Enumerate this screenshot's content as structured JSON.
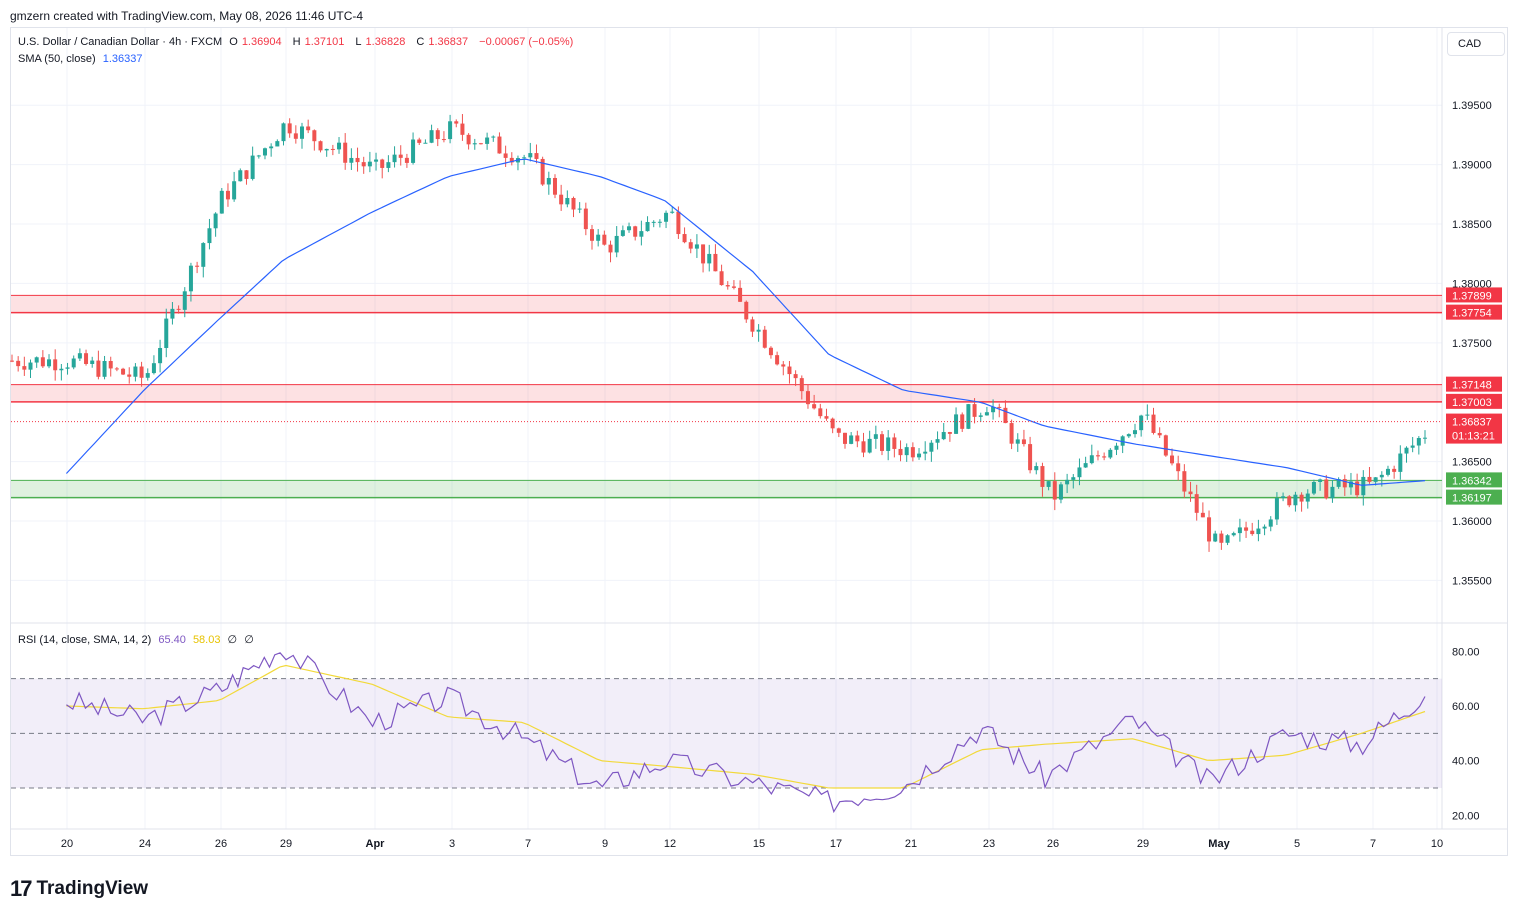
{
  "header": {
    "credit": "gmzern created with TradingView.com, May 08, 2026 11:46 UTC-4"
  },
  "legend": {
    "symbol": "U.S. Dollar / Canadian Dollar · 4h · FXCM",
    "o_label": "O",
    "o": "1.36904",
    "h_label": "H",
    "h": "1.37101",
    "l_label": "L",
    "l": "1.36828",
    "c_label": "C",
    "c": "1.36837",
    "change": "−0.00067 (−0.05%)",
    "sma_label": "SMA (50, close)",
    "sma_value": "1.36337",
    "rsi_label": "RSI (14, close, SMA, 14, 2)",
    "rsi_value": "65.40",
    "rsi_ma_value": "58.03",
    "rsi_extra1": "∅",
    "rsi_extra2": "∅"
  },
  "currency": "CAD",
  "countdown": "01:13:21",
  "footer": {
    "brand": "TradingView",
    "logo": "17"
  },
  "colors": {
    "up": "#26a69a",
    "down": "#ef5350",
    "sma": "#2962ff",
    "rsi": "#7e57c2",
    "rsi_ma": "#f2d93a",
    "resistance_zone": "#f23645",
    "support_zone": "#4caf50"
  },
  "chart_data": {
    "type": "candlestick",
    "title": "U.S. Dollar / Canadian Dollar · 4h · FXCM",
    "x_ticks": [
      "20",
      "24",
      "26",
      "29",
      "Apr",
      "3",
      "7",
      "9",
      "12",
      "15",
      "17",
      "21",
      "23",
      "26",
      "29",
      "May",
      "5",
      "7",
      "10"
    ],
    "y_ticks": [
      "1.39500",
      "1.39000",
      "1.38500",
      "1.38000",
      "1.37500",
      "1.36500",
      "1.36000",
      "1.35500"
    ],
    "ylim": [
      1.3515,
      1.4015
    ],
    "price_key_points": [
      [
        "20",
        1.3735
      ],
      [
        "24",
        1.372
      ],
      [
        "26",
        1.387
      ],
      [
        "29",
        1.3935
      ],
      [
        "Apr",
        1.3895
      ],
      [
        "3",
        1.393
      ],
      [
        "7",
        1.3905
      ],
      [
        "9",
        1.383
      ],
      [
        "12",
        1.386
      ],
      [
        "15",
        1.376
      ],
      [
        "17",
        1.367
      ],
      [
        "21",
        1.366
      ],
      [
        "23",
        1.37
      ],
      [
        "26",
        1.362
      ],
      [
        "29",
        1.369
      ],
      [
        "May",
        1.3575
      ],
      [
        "5",
        1.3625
      ],
      [
        "7",
        1.363
      ],
      [
        "10",
        1.3684
      ]
    ],
    "sma_key_points": [
      [
        "20",
        1.364
      ],
      [
        "24",
        1.371
      ],
      [
        "26",
        1.377
      ],
      [
        "29",
        1.382
      ],
      [
        "Apr",
        1.386
      ],
      [
        "3",
        1.389
      ],
      [
        "7",
        1.3905
      ],
      [
        "9",
        1.389
      ],
      [
        "12",
        1.387
      ],
      [
        "15",
        1.381
      ],
      [
        "17",
        1.374
      ],
      [
        "21",
        1.371
      ],
      [
        "23",
        1.37
      ],
      [
        "26",
        1.368
      ],
      [
        "29",
        1.3665
      ],
      [
        "May",
        1.3655
      ],
      [
        "5",
        1.3645
      ],
      [
        "7",
        1.363
      ],
      [
        "10",
        1.3634
      ]
    ],
    "zones": [
      {
        "label_top": "1.37899",
        "label_bottom": "1.37754",
        "top": 1.37899,
        "bottom": 1.37754,
        "kind": "resistance"
      },
      {
        "label_top": "1.37148",
        "label_bottom": "1.37003",
        "top": 1.37148,
        "bottom": 1.37003,
        "kind": "resistance"
      },
      {
        "label_top": "1.36342",
        "label_bottom": "1.36197",
        "top": 1.36342,
        "bottom": 1.36197,
        "kind": "support"
      }
    ],
    "last_price_label": "1.36837",
    "last_price": 1.36837,
    "rsi": {
      "y_ticks": [
        "80.00",
        "60.00",
        "40.00",
        "20.00"
      ],
      "ylim": [
        15,
        90
      ],
      "band_upper": 70,
      "band_mid": 50,
      "band_lower": 30,
      "rsi_key_points": [
        [
          "20",
          62
        ],
        [
          "24",
          55
        ],
        [
          "26",
          66
        ],
        [
          "29",
          82
        ],
        [
          "Apr",
          54
        ],
        [
          "3",
          63
        ],
        [
          "7",
          48
        ],
        [
          "9",
          30
        ],
        [
          "12",
          40
        ],
        [
          "15",
          32
        ],
        [
          "17",
          25
        ],
        [
          "21",
          31
        ],
        [
          "23",
          52
        ],
        [
          "26",
          34
        ],
        [
          "29",
          55
        ],
        [
          "May",
          32
        ],
        [
          "5",
          50
        ],
        [
          "7",
          46
        ],
        [
          "10",
          65
        ]
      ],
      "rsi_ma_key_points": [
        [
          "20",
          60
        ],
        [
          "24",
          59
        ],
        [
          "26",
          62
        ],
        [
          "29",
          75
        ],
        [
          "Apr",
          68
        ],
        [
          "3",
          56
        ],
        [
          "7",
          54
        ],
        [
          "9",
          40
        ],
        [
          "12",
          38
        ],
        [
          "15",
          35
        ],
        [
          "17",
          30
        ],
        [
          "21",
          30
        ],
        [
          "23",
          44
        ],
        [
          "26",
          46
        ],
        [
          "29",
          48
        ],
        [
          "May",
          40
        ],
        [
          "5",
          42
        ],
        [
          "7",
          50
        ],
        [
          "10",
          58
        ]
      ]
    }
  }
}
